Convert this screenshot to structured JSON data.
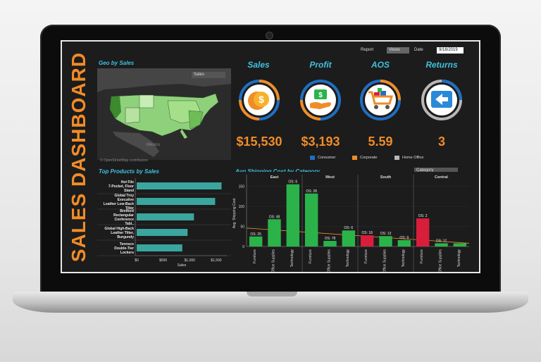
{
  "dashboard": {
    "title": "SALES DASHBOARD",
    "report_label": "Report",
    "report_value": "Views",
    "date_label": "Date",
    "date_value": "9/16/2019"
  },
  "geo": {
    "title": "Geo by Sales",
    "selector": "Sales",
    "credit": "© OpenStreetMap contributors",
    "place_label": "Mexico"
  },
  "kpis": [
    {
      "label": "Sales",
      "value": "$15,530",
      "icon": "coins-icon"
    },
    {
      "label": "Profit",
      "value": "$3,193",
      "icon": "money-hand-icon"
    },
    {
      "label": "AOS",
      "value": "5.59",
      "icon": "shopping-cart-icon"
    },
    {
      "label": "Returns",
      "value": "3",
      "icon": "return-box-icon"
    }
  ],
  "legend": [
    {
      "label": "Consumer",
      "color": "#1f6fc2"
    },
    {
      "label": "Corporate",
      "color": "#f08c28"
    },
    {
      "label": "Home Office",
      "color": "#b8b8b8"
    }
  ],
  "colors": {
    "accent_orange": "#f08c28",
    "accent_cyan": "#3fc1e0",
    "bar_teal": "#3aa69f",
    "bar_green": "#2bb34a",
    "bar_red": "#d81e3a",
    "ring_blue": "#1f6fc2",
    "ring_grey": "#b8b8b8"
  },
  "top_products": {
    "title": "Top Products by Sales",
    "xlabel": "Sales",
    "chart_data": {
      "type": "bar",
      "orientation": "horizontal",
      "categories": [
        "Hot File 7-Pocket, Floor Stand",
        "Global Troy Executive Leather Low-Back Tilter",
        "Bretford Rectangular Conference Tabl..",
        "Global High-Back Leather Tilter, Burgundy",
        "Tennsco Double-Tier Lockers"
      ],
      "values": [
        1600,
        1480,
        1080,
        960,
        860
      ],
      "xticks": [
        "$0",
        "$500",
        "$1,000",
        "$1,500"
      ],
      "xlim": [
        0,
        1700
      ]
    }
  },
  "shipping": {
    "title": "Avg.Shipping Cost  by Category",
    "selector": "Category",
    "ylabel": "Avg. Shipping Cost",
    "chart_data": {
      "type": "bar",
      "regions": [
        "East",
        "West",
        "South",
        "Central"
      ],
      "categories": [
        "Furniture",
        "Office Supplies",
        "Technology"
      ],
      "yticks": [
        "0",
        "50",
        "100",
        "150"
      ],
      "ylim": [
        0,
        165
      ],
      "series": [
        {
          "name": "East",
          "values": [
            25,
            68,
            155
          ],
          "labels": [
            "OS: 25",
            "OS: 48",
            "OS: 6"
          ],
          "colors": [
            "#2bb34a",
            "#2bb34a",
            "#2bb34a"
          ]
        },
        {
          "name": "West",
          "values": [
            132,
            14,
            40
          ],
          "labels": [
            "OS: 28",
            "OS: 78",
            "OS: 6"
          ],
          "colors": [
            "#2bb34a",
            "#2bb34a",
            "#2bb34a"
          ]
        },
        {
          "name": "South",
          "values": [
            28,
            26,
            16
          ],
          "labels": [
            "OS: 18",
            "OS: 13",
            "OS: 9"
          ],
          "colors": [
            "#d81e3a",
            "#2bb34a",
            "#2bb34a"
          ]
        },
        {
          "name": "Central",
          "values": [
            70,
            8,
            8
          ],
          "labels": [
            "OS: 2",
            "OS: 12",
            ""
          ],
          "colors": [
            "#d81e3a",
            "#2bb34a",
            "#2bb34a"
          ]
        }
      ]
    }
  }
}
